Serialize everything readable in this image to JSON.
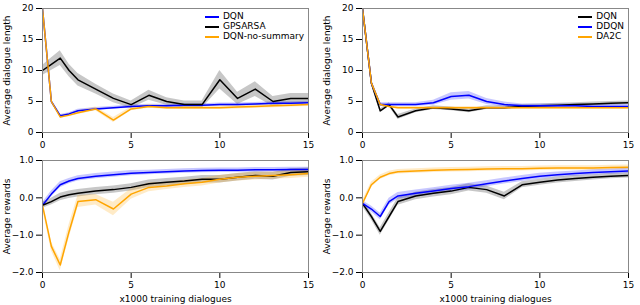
{
  "chart_data": [
    {
      "type": "line",
      "ylabel": "Average dialogue length",
      "xlim": [
        0,
        15
      ],
      "ylim": [
        0,
        20
      ],
      "xticks": [
        0,
        5,
        10,
        15
      ],
      "yticks": [
        0,
        5,
        10,
        15,
        20
      ],
      "legend": "upper right",
      "x": [
        0,
        0.5,
        1,
        1.5,
        2,
        3,
        4,
        5,
        6,
        7,
        8,
        9,
        10,
        11,
        12,
        13,
        14,
        15
      ],
      "series": [
        {
          "name": "DQN",
          "color": "#0000ff",
          "values": [
            20,
            5.0,
            2.7,
            3.0,
            3.5,
            3.8,
            4.0,
            4.2,
            4.3,
            4.3,
            4.4,
            4.4,
            4.5,
            4.5,
            4.6,
            4.7,
            4.7,
            4.8
          ],
          "std": [
            0,
            0.2,
            0.2,
            0.2,
            0.25,
            0.25,
            0.25,
            0.25,
            0.25,
            0.25,
            0.25,
            0.25,
            0.25,
            0.25,
            0.25,
            0.25,
            0.25,
            0.25
          ]
        },
        {
          "name": "GPSARSA",
          "color": "#000000",
          "values": [
            10,
            11,
            12,
            10,
            8.5,
            7.0,
            5.5,
            4.5,
            6.0,
            5.0,
            4.5,
            4.5,
            8.5,
            5.5,
            7.0,
            5.0,
            5.5,
            5.5
          ],
          "std": [
            0.8,
            1.0,
            1.2,
            1.0,
            1.0,
            0.8,
            0.7,
            0.6,
            0.8,
            0.6,
            0.6,
            0.6,
            1.5,
            1.0,
            1.2,
            0.8,
            0.8,
            0.8
          ]
        },
        {
          "name": "DQN-no-summary",
          "color": "#ffa500",
          "values": [
            20,
            5.0,
            2.5,
            2.8,
            3.2,
            3.8,
            2.0,
            3.8,
            4.2,
            4.0,
            4.0,
            4.0,
            4.0,
            4.1,
            4.2,
            4.3,
            4.4,
            4.5
          ],
          "std": [
            0,
            0.2,
            0.2,
            0.25,
            0.3,
            0.3,
            0.4,
            0.3,
            0.3,
            0.3,
            0.3,
            0.3,
            0.3,
            0.3,
            0.3,
            0.3,
            0.3,
            0.3
          ]
        }
      ]
    },
    {
      "type": "line",
      "ylabel": "Average dialogue length",
      "xlim": [
        0,
        15
      ],
      "ylim": [
        0,
        20
      ],
      "xticks": [
        0,
        5,
        10,
        15
      ],
      "yticks": [
        0,
        5,
        10,
        15,
        20
      ],
      "legend": "upper right",
      "x": [
        0,
        0.5,
        1,
        1.5,
        2,
        3,
        4,
        5,
        6,
        7,
        8,
        9,
        10,
        11,
        12,
        13,
        14,
        15
      ],
      "series": [
        {
          "name": "DQN",
          "color": "#000000",
          "values": [
            20,
            8.0,
            3.5,
            4.5,
            2.5,
            3.5,
            4.0,
            3.8,
            3.5,
            4.0,
            4.0,
            4.2,
            4.3,
            4.4,
            4.5,
            4.6,
            4.7,
            4.8
          ],
          "std": [
            0,
            0.3,
            0.3,
            0.3,
            0.4,
            0.3,
            0.3,
            0.3,
            0.3,
            0.3,
            0.3,
            0.3,
            0.3,
            0.3,
            0.3,
            0.3,
            0.3,
            0.3
          ]
        },
        {
          "name": "DDQN",
          "color": "#0000ff",
          "values": [
            20,
            8.0,
            4.5,
            4.5,
            4.5,
            4.5,
            4.8,
            5.8,
            6.0,
            5.0,
            4.5,
            4.3,
            4.3,
            4.3,
            4.3,
            4.2,
            4.2,
            4.2
          ],
          "std": [
            0,
            0.3,
            0.3,
            0.3,
            0.3,
            0.3,
            0.4,
            0.6,
            0.6,
            0.5,
            0.4,
            0.3,
            0.3,
            0.3,
            0.3,
            0.3,
            0.3,
            0.3
          ]
        },
        {
          "name": "DA2C",
          "color": "#ffa500",
          "values": [
            20,
            8.0,
            4.5,
            4.2,
            4.0,
            4.0,
            4.0,
            4.0,
            4.0,
            4.0,
            4.0,
            4.0,
            4.0,
            4.0,
            4.0,
            4.0,
            4.0,
            4.0
          ],
          "std": [
            0,
            0.2,
            0.2,
            0.2,
            0.2,
            0.2,
            0.2,
            0.2,
            0.2,
            0.2,
            0.2,
            0.2,
            0.2,
            0.2,
            0.2,
            0.2,
            0.2,
            0.2
          ]
        }
      ]
    },
    {
      "type": "line",
      "ylabel": "Average rewards",
      "xlabel": "x1000 training dialogues",
      "xlim": [
        0,
        15
      ],
      "ylim": [
        -2,
        1
      ],
      "xticks": [
        0,
        5,
        10,
        15
      ],
      "yticks": [
        -2,
        -1,
        0,
        1
      ],
      "x": [
        0,
        0.5,
        1,
        1.5,
        2,
        3,
        4,
        5,
        6,
        7,
        8,
        9,
        10,
        11,
        12,
        13,
        14,
        15
      ],
      "series": [
        {
          "name": "DQN",
          "color": "#0000ff",
          "values": [
            -0.2,
            0.1,
            0.35,
            0.45,
            0.52,
            0.58,
            0.62,
            0.66,
            0.68,
            0.7,
            0.72,
            0.73,
            0.74,
            0.74,
            0.75,
            0.75,
            0.76,
            0.76
          ],
          "std": [
            0.07,
            0.08,
            0.08,
            0.07,
            0.07,
            0.07,
            0.07,
            0.07,
            0.06,
            0.06,
            0.06,
            0.06,
            0.06,
            0.06,
            0.06,
            0.06,
            0.06,
            0.06
          ]
        },
        {
          "name": "GPSARSA",
          "color": "#000000",
          "values": [
            -0.2,
            -0.1,
            0.02,
            0.08,
            0.12,
            0.18,
            0.22,
            0.28,
            0.38,
            0.42,
            0.45,
            0.5,
            0.5,
            0.55,
            0.6,
            0.58,
            0.68,
            0.7
          ],
          "std": [
            0.08,
            0.09,
            0.1,
            0.1,
            0.1,
            0.1,
            0.1,
            0.1,
            0.1,
            0.1,
            0.1,
            0.1,
            0.1,
            0.1,
            0.1,
            0.1,
            0.1,
            0.1
          ]
        },
        {
          "name": "DQN-no-summary",
          "color": "#ffa500",
          "values": [
            -0.2,
            -1.3,
            -1.8,
            -0.9,
            -0.1,
            -0.05,
            -0.3,
            0.1,
            0.28,
            0.32,
            0.38,
            0.42,
            0.5,
            0.55,
            0.58,
            0.6,
            0.62,
            0.65
          ],
          "std": [
            0.07,
            0.12,
            0.15,
            0.18,
            0.16,
            0.14,
            0.18,
            0.14,
            0.12,
            0.1,
            0.1,
            0.1,
            0.1,
            0.1,
            0.1,
            0.1,
            0.1,
            0.1
          ]
        }
      ]
    },
    {
      "type": "line",
      "ylabel": "Average rewards",
      "xlabel": "x1000 training dialogues",
      "xlim": [
        0,
        15
      ],
      "ylim": [
        -2,
        1
      ],
      "xticks": [
        0,
        5,
        10,
        15
      ],
      "yticks": [
        -2,
        -1,
        0,
        1
      ],
      "x": [
        0,
        0.5,
        1,
        1.5,
        2,
        3,
        4,
        5,
        6,
        7,
        8,
        9,
        10,
        11,
        12,
        13,
        14,
        15
      ],
      "series": [
        {
          "name": "DQN",
          "color": "#000000",
          "values": [
            -0.15,
            -0.5,
            -0.9,
            -0.5,
            -0.1,
            0.05,
            0.12,
            0.18,
            0.28,
            0.22,
            0.05,
            0.35,
            0.42,
            0.48,
            0.52,
            0.55,
            0.58,
            0.6
          ],
          "std": [
            0.08,
            0.09,
            0.1,
            0.1,
            0.1,
            0.1,
            0.1,
            0.1,
            0.1,
            0.1,
            0.1,
            0.08,
            0.08,
            0.08,
            0.08,
            0.07,
            0.07,
            0.07
          ]
        },
        {
          "name": "DDQN",
          "color": "#0000ff",
          "values": [
            -0.15,
            -0.3,
            -0.5,
            -0.1,
            0.05,
            0.12,
            0.18,
            0.25,
            0.3,
            0.38,
            0.45,
            0.52,
            0.58,
            0.62,
            0.65,
            0.68,
            0.7,
            0.72
          ],
          "std": [
            0.07,
            0.08,
            0.09,
            0.09,
            0.09,
            0.09,
            0.09,
            0.09,
            0.09,
            0.08,
            0.08,
            0.08,
            0.08,
            0.07,
            0.07,
            0.07,
            0.07,
            0.07
          ]
        },
        {
          "name": "DA2C",
          "color": "#ffa500",
          "values": [
            -0.15,
            0.35,
            0.55,
            0.65,
            0.7,
            0.72,
            0.74,
            0.75,
            0.76,
            0.77,
            0.78,
            0.78,
            0.79,
            0.8,
            0.8,
            0.8,
            0.81,
            0.82
          ],
          "std": [
            0.07,
            0.07,
            0.06,
            0.06,
            0.06,
            0.06,
            0.06,
            0.06,
            0.06,
            0.06,
            0.06,
            0.06,
            0.06,
            0.06,
            0.06,
            0.06,
            0.06,
            0.06
          ]
        }
      ]
    }
  ]
}
